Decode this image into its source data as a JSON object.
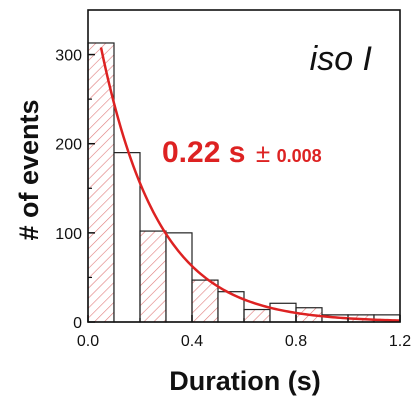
{
  "chart_data": {
    "type": "bar",
    "xlabel": "Duration (s)",
    "ylabel": "# of events",
    "xlim": [
      0.0,
      1.2
    ],
    "ylim": [
      0,
      350
    ],
    "x_ticks": [
      "0.0",
      "0.4",
      "0.8",
      "1.2"
    ],
    "x_tick_values": [
      0.0,
      0.4,
      0.8,
      1.2
    ],
    "y_ticks": [
      "0",
      "100",
      "200",
      "300"
    ],
    "y_tick_values": [
      0,
      100,
      200,
      300
    ],
    "bin_width": 0.1,
    "bins": [
      {
        "center": 0.05,
        "count": 313
      },
      {
        "center": 0.15,
        "count": 190
      },
      {
        "center": 0.25,
        "count": 102
      },
      {
        "center": 0.35,
        "count": 100
      },
      {
        "center": 0.45,
        "count": 47
      },
      {
        "center": 0.55,
        "count": 34
      },
      {
        "center": 0.65,
        "count": 14
      },
      {
        "center": 0.75,
        "count": 21
      },
      {
        "center": 0.85,
        "count": 16
      },
      {
        "center": 0.95,
        "count": 8
      },
      {
        "center": 1.05,
        "count": 8
      },
      {
        "center": 1.15,
        "count": 8
      }
    ],
    "fit": {
      "type": "exponential",
      "tau": 0.22,
      "tau_error": 0.008,
      "color": "#dd2222",
      "x_start": 0.05,
      "y_at_start": 308,
      "x_end": 1.2
    },
    "annotations": {
      "condition": "iso I",
      "tau_value": "0.22 s",
      "plus_minus": "±",
      "tau_error": "0.008"
    },
    "colors": {
      "axis": "#111111",
      "bar_outline": "#222222",
      "hatch": "#e07a7a",
      "annotation_red": "#dd2222"
    },
    "grid": false,
    "legend": "none"
  }
}
